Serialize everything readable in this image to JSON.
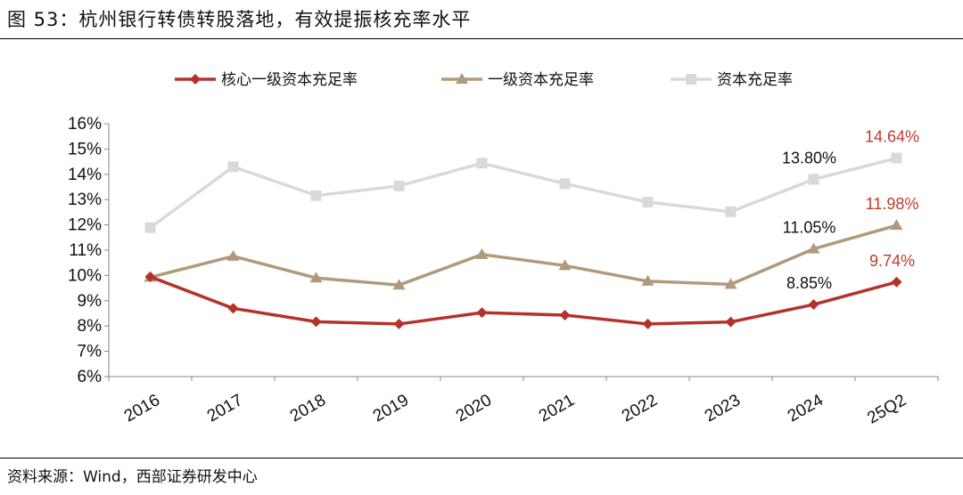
{
  "figure": {
    "title": "图 53：杭州银行转债转股落地，有效提振核充率水平",
    "source": "资料来源：Wind，西部证券研发中心"
  },
  "chart_data": {
    "type": "line",
    "categories": [
      "2016",
      "2017",
      "2018",
      "2019",
      "2020",
      "2021",
      "2022",
      "2023",
      "2024",
      "25Q2"
    ],
    "ylim": [
      6,
      16
    ],
    "yticks": [
      "6%",
      "7%",
      "8%",
      "9%",
      "10%",
      "11%",
      "12%",
      "13%",
      "14%",
      "15%",
      "16%"
    ],
    "grid": false,
    "legend_position": "top",
    "series": [
      {
        "name": "核心一级资本充足率",
        "color": "#b5322a",
        "marker": "diamond",
        "values": [
          9.95,
          8.7,
          8.17,
          8.08,
          8.53,
          8.43,
          8.08,
          8.16,
          8.85,
          9.74
        ]
      },
      {
        "name": "一级资本充足率",
        "color": "#b09a7c",
        "marker": "triangle",
        "values": [
          9.93,
          10.76,
          9.9,
          9.62,
          10.83,
          10.39,
          9.77,
          9.65,
          11.05,
          11.98
        ]
      },
      {
        "name": "资本充足率",
        "color": "#d9d9d9",
        "marker": "square",
        "values": [
          11.89,
          14.3,
          13.16,
          13.54,
          14.44,
          13.63,
          12.9,
          12.52,
          13.8,
          14.64
        ]
      }
    ],
    "annotations": [
      {
        "series": 0,
        "index": 8,
        "text": "8.85%",
        "color": "#111111"
      },
      {
        "series": 0,
        "index": 9,
        "text": "9.74%",
        "color": "#c0392b"
      },
      {
        "series": 1,
        "index": 8,
        "text": "11.05%",
        "color": "#111111"
      },
      {
        "series": 1,
        "index": 9,
        "text": "11.98%",
        "color": "#c0392b"
      },
      {
        "series": 2,
        "index": 8,
        "text": "13.80%",
        "color": "#111111"
      },
      {
        "series": 2,
        "index": 9,
        "text": "14.64%",
        "color": "#c0392b"
      }
    ]
  }
}
